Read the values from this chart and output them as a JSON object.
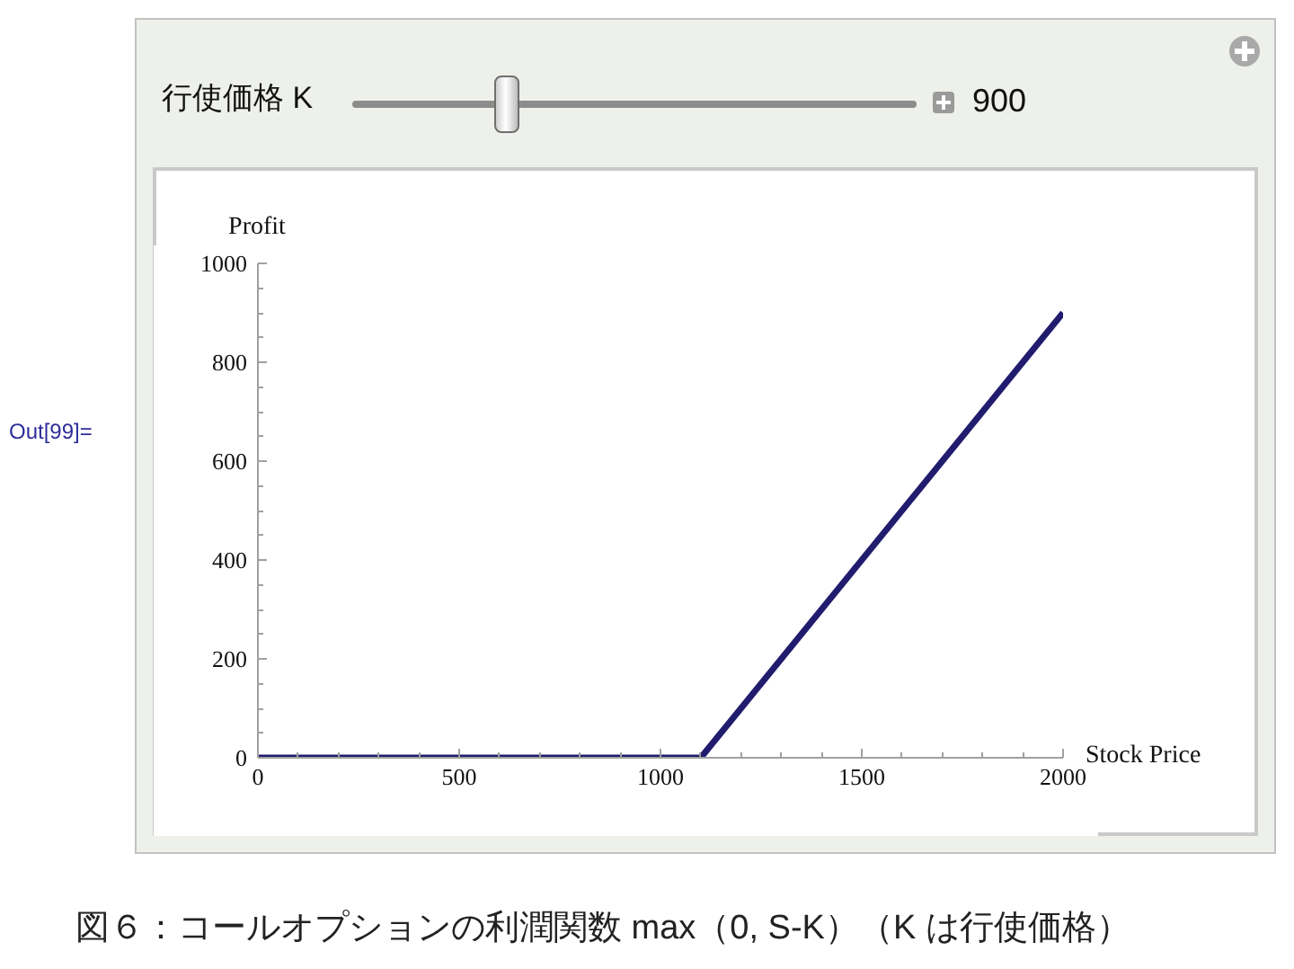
{
  "chart_data": {
    "type": "line",
    "xlabel": "Stock Price",
    "ylabel": "Profit",
    "x": [
      0,
      1100,
      2000
    ],
    "series": [
      {
        "color": "#211c6e",
        "values": [
          0,
          0,
          900
        ]
      }
    ],
    "xlim": [
      0,
      2000
    ],
    "ylim": [
      0,
      1000
    ],
    "xticks": [
      0,
      {
        "value": 100,
        "label": null
      },
      {
        "value": 200,
        "label": null
      },
      {
        "value": 300,
        "label": null
      },
      {
        "value": 400,
        "label": null
      },
      500,
      {
        "value": 600,
        "label": null
      },
      {
        "value": 700,
        "label": null
      },
      {
        "value": 800,
        "label": null
      },
      {
        "value": 900,
        "label": null
      },
      1000,
      {
        "value": 1100,
        "label": null
      },
      {
        "value": 1200,
        "label": null
      },
      {
        "value": 1300,
        "label": null
      },
      {
        "value": 1400,
        "label": null
      },
      1500,
      {
        "value": 1600,
        "label": null
      },
      {
        "value": 1700,
        "label": null
      },
      {
        "value": 1800,
        "label": null
      },
      {
        "value": 1900,
        "label": null
      },
      2000
    ],
    "yticks": [
      0,
      {
        "value": 50,
        "label": null
      },
      {
        "value": 100,
        "label": null
      },
      {
        "value": 150,
        "label": null
      },
      200,
      {
        "value": 250,
        "label": null
      },
      {
        "value": 300,
        "label": null
      },
      {
        "value": 350,
        "label": null
      },
      400,
      {
        "value": 450,
        "label": null
      },
      {
        "value": 500,
        "label": null
      },
      {
        "value": 550,
        "label": null
      },
      600,
      {
        "value": 650,
        "label": null
      },
      {
        "value": 700,
        "label": null
      },
      {
        "value": 750,
        "label": null
      },
      800,
      {
        "value": 850,
        "label": null
      },
      {
        "value": 900,
        "label": null
      },
      {
        "value": 950,
        "label": null
      },
      1000
    ],
    "grid": false,
    "line_style": "solid",
    "annotations": [
      "Out[99]=",
      "行使価格 K",
      "900",
      "図６：コールオプションの利潤関数 max（0, S-K）（K は行使価格）"
    ]
  }
}
